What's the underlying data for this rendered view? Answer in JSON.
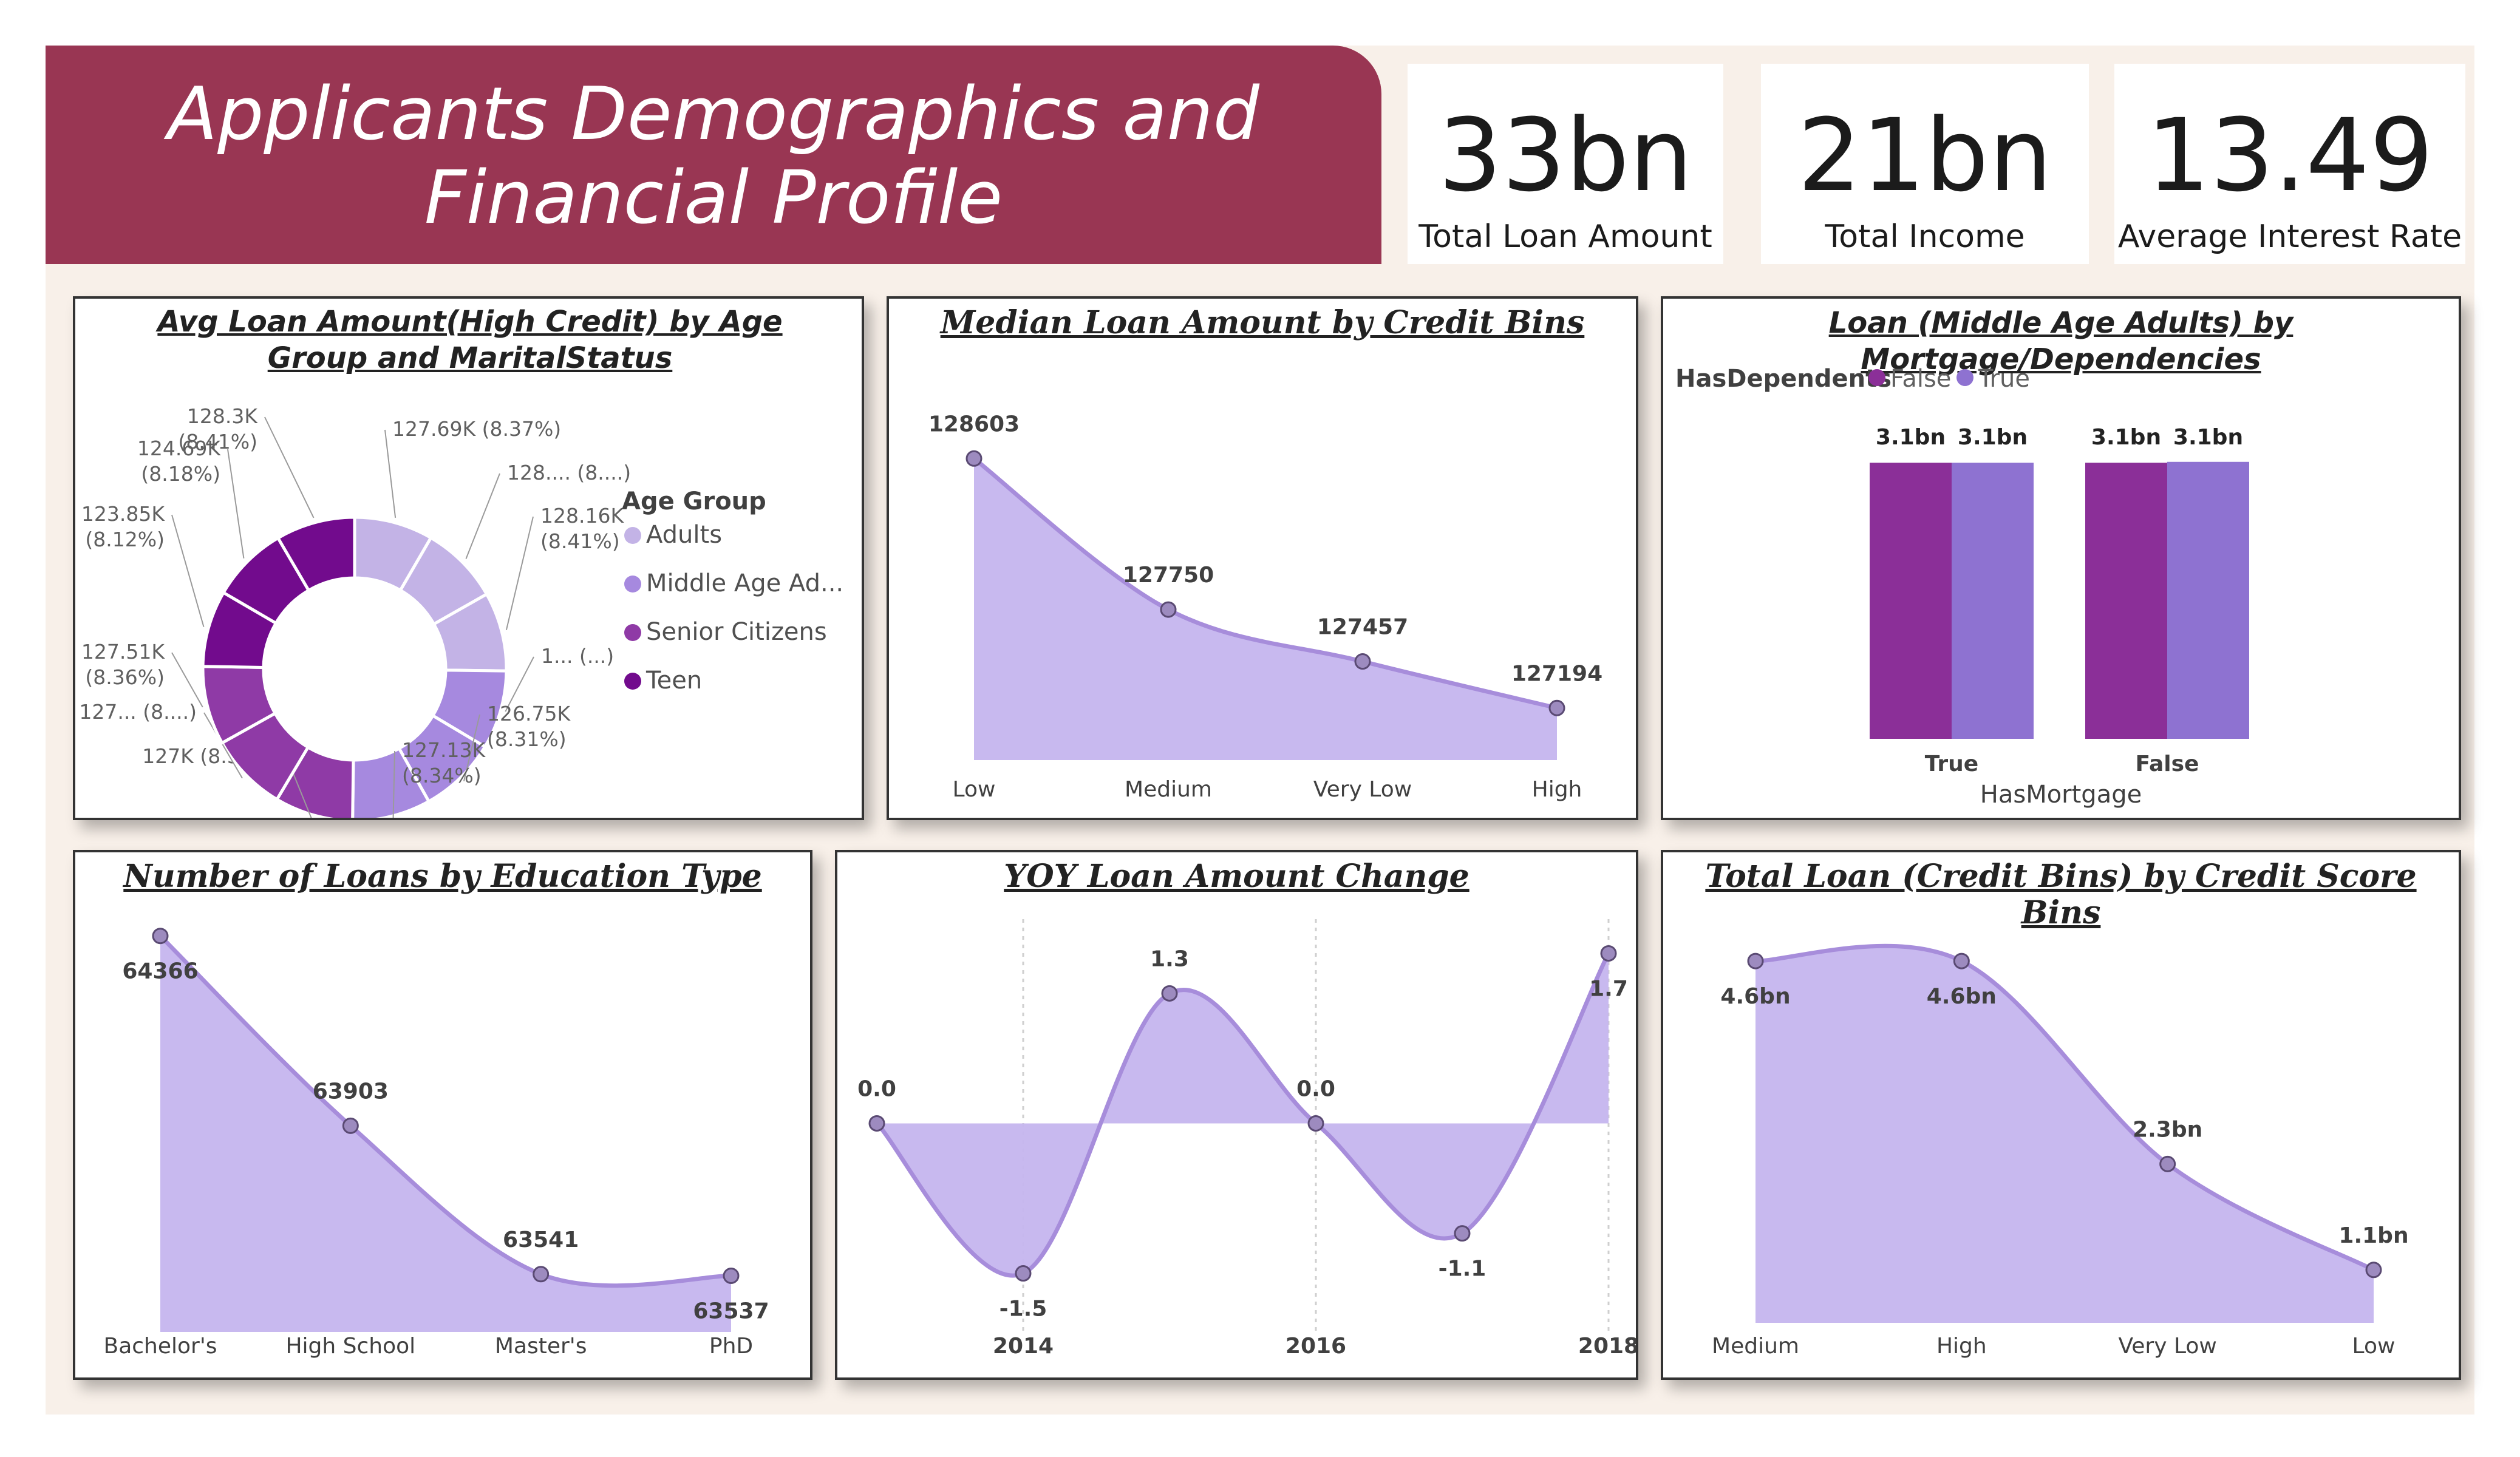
{
  "header": {
    "title_line1": "Applicants Demographics and",
    "title_line2": "Financial Profile"
  },
  "kpis": [
    {
      "value": "33bn",
      "label": "Total Loan Amount"
    },
    {
      "value": "21bn",
      "label": "Total Income"
    },
    {
      "value": "13.49",
      "label": "Average Interest Rate"
    }
  ],
  "colors": {
    "accent": "#993653",
    "area_fill": "#c5b5ee",
    "line": "#a78ddb",
    "bar_false": "#8b2f98",
    "bar_true": "#8e72d1"
  },
  "chart_data": [
    {
      "id": "donut",
      "type": "pie",
      "title": "Avg Loan Amount(High Credit) by Age Group and MaritalStatus",
      "legend_title": "Age Group",
      "legend": [
        {
          "name": "Adults",
          "color": "#c3b3e6"
        },
        {
          "name": "Middle Age Ad...",
          "color": "#a689df"
        },
        {
          "name": "Senior Citizens",
          "color": "#8f3aa6"
        },
        {
          "name": "Teen",
          "color": "#720b8d"
        }
      ],
      "slices": [
        {
          "group": "Adults",
          "label1": "127.69K (8.37%)",
          "label2": "",
          "value": 127.69,
          "color": "#c3b3e6"
        },
        {
          "group": "Adults",
          "label1": "128.... (8....)",
          "label2": "",
          "value": 128.2,
          "color": "#c3b3e6"
        },
        {
          "group": "Adults",
          "label1": "128.16K",
          "label2": "(8.41%)",
          "value": 128.16,
          "color": "#c3b3e6"
        },
        {
          "group": "Middle Age Ad...",
          "label1": "1... (...)",
          "label2": "",
          "value": 127.3,
          "color": "#a689df"
        },
        {
          "group": "Middle Age Ad...",
          "label1": "126.75K",
          "label2": "(8.31%)",
          "value": 126.75,
          "color": "#a689df"
        },
        {
          "group": "Middle Age Ad...",
          "label1": "127.13K",
          "label2": "(8.34%)",
          "value": 127.13,
          "color": "#a689df"
        },
        {
          "group": "Senior Citizens",
          "label1": "127K (8.33%)",
          "label2": "",
          "value": 127.0,
          "color": "#8f3aa6"
        },
        {
          "group": "Senior Citizens",
          "label1": "127... (8....)",
          "label2": "",
          "value": 127.3,
          "color": "#8f3aa6"
        },
        {
          "group": "Senior Citizens",
          "label1": "127.51K",
          "label2": "(8.36%)",
          "value": 127.51,
          "color": "#8f3aa6"
        },
        {
          "group": "Teen",
          "label1": "123.85K",
          "label2": "(8.12%)",
          "value": 123.85,
          "color": "#720b8d"
        },
        {
          "group": "Teen",
          "label1": "124.69K",
          "label2": "(8.18%)",
          "value": 124.69,
          "color": "#720b8d"
        },
        {
          "group": "Teen",
          "label1": "128.3K",
          "label2": "(8.41%)",
          "value": 128.3,
          "color": "#720b8d"
        }
      ]
    },
    {
      "id": "median",
      "type": "area",
      "title": "Median Loan Amount by Credit Bins",
      "categories": [
        "Low",
        "Medium",
        "Very Low",
        "High"
      ],
      "values": [
        128603,
        127750,
        127457,
        127194
      ],
      "labels": [
        "128603",
        "127750",
        "127457",
        "127194"
      ],
      "ylim": [
        126900,
        128700
      ]
    },
    {
      "id": "mortgage",
      "type": "bar",
      "title": "Loan (Middle Age Adults) by Mortgage/Dependencies",
      "legend_title": "HasDependents",
      "xlabel": "HasMortgage",
      "categories": [
        "True",
        "False"
      ],
      "series": [
        {
          "name": "False",
          "values": [
            3.06,
            3.06
          ],
          "labels": [
            "3.1bn",
            "3.1bn"
          ],
          "color": "#8b2f98"
        },
        {
          "name": "True",
          "values": [
            3.06,
            3.07
          ],
          "labels": [
            "3.1bn",
            "3.1bn"
          ],
          "color": "#8e72d1"
        }
      ],
      "ylim": [
        0,
        3.6
      ]
    },
    {
      "id": "education",
      "type": "area",
      "title": "Number of Loans by Education Type",
      "categories": [
        "Bachelor's",
        "High School",
        "Master's",
        "PhD"
      ],
      "values": [
        64366,
        63903,
        63541,
        63537
      ],
      "labels": [
        "64366",
        "63903",
        "63541",
        "63537"
      ],
      "ylim": [
        63400,
        64370
      ]
    },
    {
      "id": "yoy",
      "type": "area",
      "title": "YOY Loan Amount Change",
      "x": [
        2013,
        2014,
        2015,
        2016,
        2017,
        2018
      ],
      "values": [
        0.0,
        -1.5,
        1.3,
        0.0,
        -1.1,
        1.7
      ],
      "labels": [
        "0.0",
        "-1.5",
        "1.3",
        "0.0",
        "-1.1",
        "1.7"
      ],
      "ticks": [
        "2014",
        "2016",
        "2018"
      ],
      "ylim": [
        -1.6,
        1.8
      ]
    },
    {
      "id": "creditscore",
      "type": "area",
      "title": "Total Loan (Credit Bins) by Credit Score Bins",
      "categories": [
        "Medium",
        "High",
        "Very Low",
        "Low"
      ],
      "values": [
        4.6,
        4.6,
        2.3,
        1.1
      ],
      "labels": [
        "4.6bn",
        "4.6bn",
        "2.3bn",
        "1.1bn"
      ],
      "ylim": [
        0.5,
        4.8
      ]
    }
  ]
}
